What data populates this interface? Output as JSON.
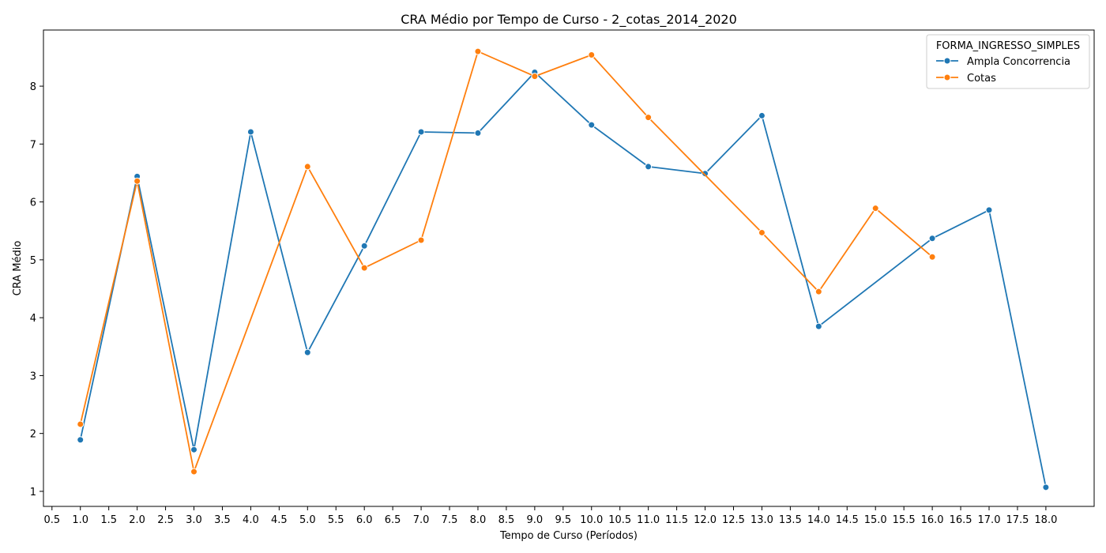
{
  "chart_data": {
    "type": "line",
    "title": "CRA Médio por Tempo de Curso - 2_cotas_2014_2020",
    "xlabel": "Tempo de Curso (Períodos)",
    "ylabel": "CRA Médio",
    "xlim": [
      0.35,
      18.85
    ],
    "ylim": [
      0.74,
      8.97
    ],
    "x_ticks": [
      "0.5",
      "1.0",
      "1.5",
      "2.0",
      "2.5",
      "3.0",
      "3.5",
      "4.0",
      "4.5",
      "5.0",
      "5.5",
      "6.0",
      "6.5",
      "7.0",
      "7.5",
      "8.0",
      "8.5",
      "9.0",
      "9.5",
      "10.0",
      "10.5",
      "11.0",
      "11.5",
      "12.0",
      "12.5",
      "13.0",
      "13.5",
      "14.0",
      "14.5",
      "15.0",
      "15.5",
      "16.0",
      "16.5",
      "17.0",
      "17.5",
      "18.0"
    ],
    "y_ticks": [
      "1",
      "2",
      "3",
      "4",
      "5",
      "6",
      "7",
      "8"
    ],
    "grid": false,
    "legend": {
      "title": "FORMA_INGRESSO_SIMPLES",
      "placement": "top-right"
    },
    "series": [
      {
        "name": "Ampla Concorrencia",
        "color": "#1f77b4",
        "x": [
          1,
          2,
          3,
          4,
          5,
          6,
          7,
          8,
          9,
          10,
          11,
          12,
          13,
          14,
          16,
          17,
          18
        ],
        "y": [
          1.89,
          6.44,
          1.72,
          7.21,
          3.4,
          5.24,
          7.21,
          7.19,
          8.24,
          7.33,
          6.61,
          6.49,
          7.49,
          3.85,
          5.37,
          5.86,
          1.07
        ]
      },
      {
        "name": "Cotas",
        "color": "#ff7f0e",
        "x": [
          1,
          2,
          3,
          5,
          6,
          7,
          8,
          9,
          10,
          11,
          13,
          14,
          15,
          16
        ],
        "y": [
          2.16,
          6.36,
          1.34,
          6.61,
          4.86,
          5.34,
          8.6,
          8.17,
          8.54,
          7.46,
          5.47,
          4.45,
          5.89,
          5.05
        ]
      }
    ]
  }
}
